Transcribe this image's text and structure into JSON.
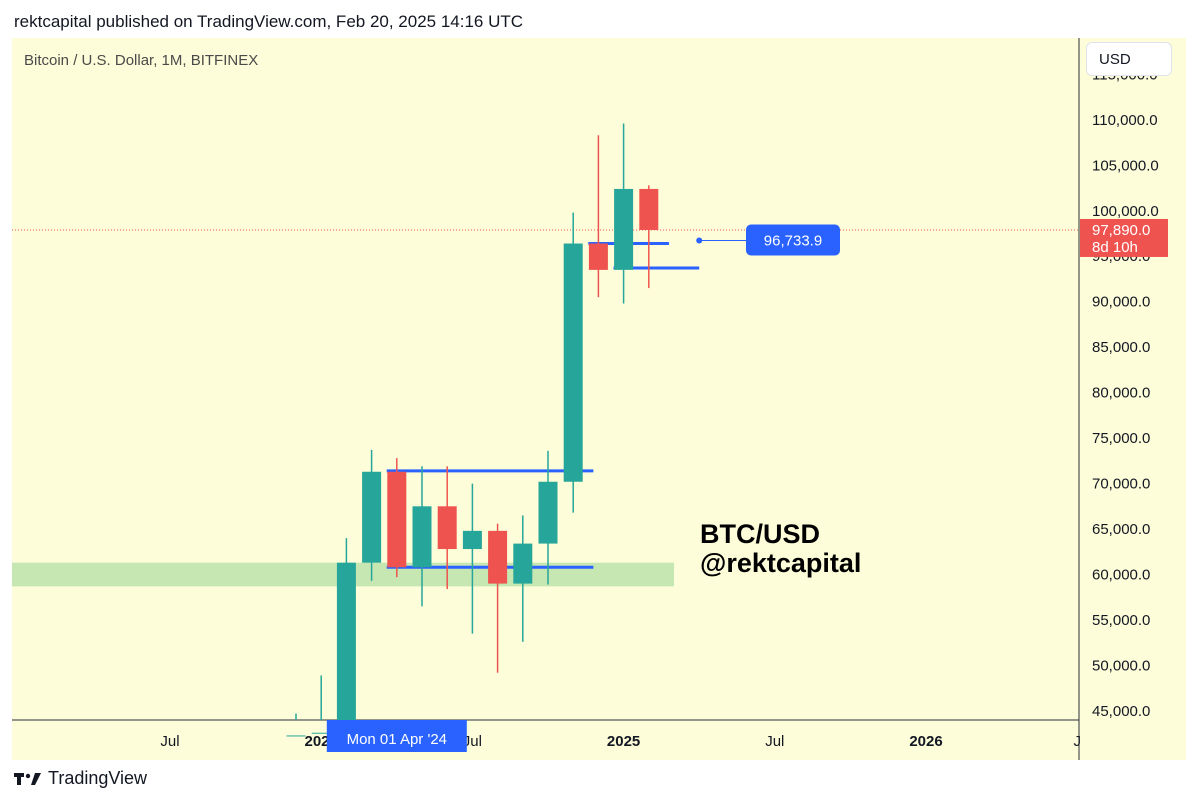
{
  "header": {
    "text": "rektcapital published on TradingView.com, Feb 20, 2025 14:16 UTC"
  },
  "chart": {
    "symbol_title": "Bitcoin / U.S. Dollar, 1M, BITFINEX",
    "currency_button": "USD",
    "watermark": [
      "BTC/USD",
      "@rektcapital"
    ],
    "background_color": "#fdfdd9",
    "up_color": "#26a69a",
    "down_color": "#ef5350",
    "level_color": "#2962ff"
  },
  "footer": {
    "brand": "TradingView"
  },
  "chart_data": {
    "type": "candlestick",
    "ylim": [
      44000,
      119000
    ],
    "y_ticks": [
      "45,000.0",
      "50,000.0",
      "55,000.0",
      "60,000.0",
      "65,000.0",
      "70,000.0",
      "75,000.0",
      "80,000.0",
      "85,000.0",
      "90,000.0",
      "95,000.0",
      "100,000.0",
      "105,000.0",
      "110,000.0",
      "115,000.0"
    ],
    "y_tick_values": [
      45000,
      50000,
      55000,
      60000,
      65000,
      70000,
      75000,
      80000,
      85000,
      90000,
      95000,
      100000,
      105000,
      110000,
      115000
    ],
    "x_labels": [
      {
        "label": "Jul",
        "month_index": -6,
        "bold": false
      },
      {
        "label": "2024",
        "month_index": 0,
        "bold": true
      },
      {
        "label": "Jul",
        "month_index": 6,
        "bold": false
      },
      {
        "label": "2025",
        "month_index": 12,
        "bold": true
      },
      {
        "label": "Jul",
        "month_index": 18,
        "bold": false
      },
      {
        "label": "2026",
        "month_index": 24,
        "bold": true
      },
      {
        "label": "J",
        "month_index": 30,
        "bold": false
      }
    ],
    "crosshair_label": {
      "text": "Mon 01 Apr '24",
      "month_index": 3
    },
    "candles": [
      {
        "month": "2023-12",
        "open": 37700,
        "high": 44700,
        "low": 37600,
        "close": 42300
      },
      {
        "month": "2024-01",
        "open": 42300,
        "high": 48900,
        "low": 38500,
        "close": 42600
      },
      {
        "month": "2024-02",
        "open": 42600,
        "high": 64000,
        "low": 41900,
        "close": 61300
      },
      {
        "month": "2024-03",
        "open": 61300,
        "high": 73700,
        "low": 59300,
        "close": 71300
      },
      {
        "month": "2024-04",
        "open": 71300,
        "high": 72800,
        "low": 59700,
        "close": 60800
      },
      {
        "month": "2024-05",
        "open": 60800,
        "high": 71900,
        "low": 56500,
        "close": 67500
      },
      {
        "month": "2024-06",
        "open": 67500,
        "high": 71900,
        "low": 58400,
        "close": 62800
      },
      {
        "month": "2024-07",
        "open": 62800,
        "high": 70000,
        "low": 53500,
        "close": 64800
      },
      {
        "month": "2024-08",
        "open": 64800,
        "high": 65600,
        "low": 49200,
        "close": 59000
      },
      {
        "month": "2024-09",
        "open": 59000,
        "high": 66500,
        "low": 52600,
        "close": 63400
      },
      {
        "month": "2024-10",
        "open": 63400,
        "high": 73600,
        "low": 58900,
        "close": 70200
      },
      {
        "month": "2024-11",
        "open": 70200,
        "high": 99800,
        "low": 66800,
        "close": 96400
      },
      {
        "month": "2024-12",
        "open": 96400,
        "high": 108300,
        "low": 90500,
        "close": 93500
      },
      {
        "month": "2025-01",
        "open": 93500,
        "high": 109600,
        "low": 89800,
        "close": 102400
      },
      {
        "month": "2025-02",
        "open": 102400,
        "high": 102800,
        "low": 91500,
        "close": 97890
      }
    ],
    "levels": [
      {
        "price": 96400,
        "from_month_index": 10.6,
        "to_month_index": 13.8
      },
      {
        "price": 93700,
        "from_month_index": 11.6,
        "to_month_index": 15.0
      },
      {
        "price": 71400,
        "from_month_index": 2.6,
        "to_month_index": 10.8
      },
      {
        "price": 60800,
        "from_month_index": 2.6,
        "to_month_index": 10.8
      }
    ],
    "zone": {
      "low": 58700,
      "high": 61300,
      "to_month_index": 14.0
    },
    "horizontal_ray": {
      "price": 96733.9,
      "label": "96,733.9",
      "from_month_index": 15.0
    },
    "last_price": {
      "value": 97890.0,
      "label": "97,890.0",
      "countdown": "8d 10h"
    }
  }
}
